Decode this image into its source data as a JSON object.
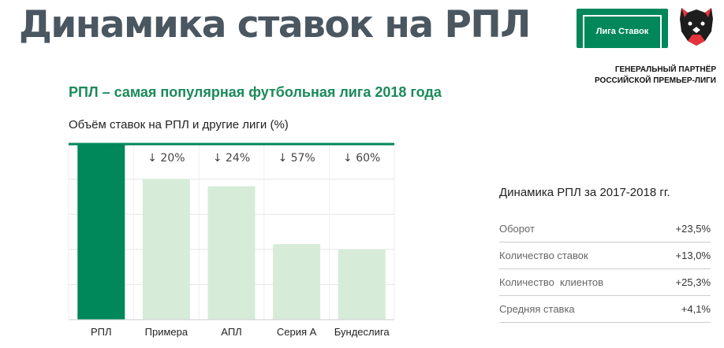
{
  "header": {
    "title": "Динамика ставок на РПЛ",
    "subtitle": "РПЛ – самая популярная футбольная лига 2018 года"
  },
  "brand": {
    "logo_text": "Лига Ставок",
    "partner_line1": "ГЕНЕРАЛЬНЫЙ ПАРТНЁР",
    "partner_line2": "РОССИЙСКОЙ ПРЕМЬЕР-ЛИГИ",
    "accent": "#00875a",
    "bar_light": "#d6ecd9",
    "rpl_logo_icon": "bear-icon"
  },
  "chart_data": {
    "type": "bar",
    "title": "Объём ставок на РПЛ и другие лиги (%)",
    "categories": [
      "РПЛ",
      "Примера",
      "АПЛ",
      "Серия А",
      "Бундеслига"
    ],
    "values": [
      100,
      80,
      76,
      43,
      40
    ],
    "annotations": [
      "",
      "↓ 20%",
      "↓ 24%",
      "↓ 57%",
      "↓ 60%"
    ],
    "ylim": [
      0,
      100
    ],
    "grid": true,
    "colors": [
      "#00875a",
      "#d6ecd9",
      "#d6ecd9",
      "#d6ecd9",
      "#d6ecd9"
    ]
  },
  "stats": {
    "title": "Динамика РПЛ за 2017-2018 гг.",
    "rows": [
      {
        "label": "Оборот",
        "value": "+23,5%"
      },
      {
        "label": "Количество ставок",
        "value": "+13,0%"
      },
      {
        "label": "Количество  клиентов",
        "value": "+25,3%"
      },
      {
        "label": "Средняя ставка",
        "value": "+4,1%"
      }
    ]
  }
}
